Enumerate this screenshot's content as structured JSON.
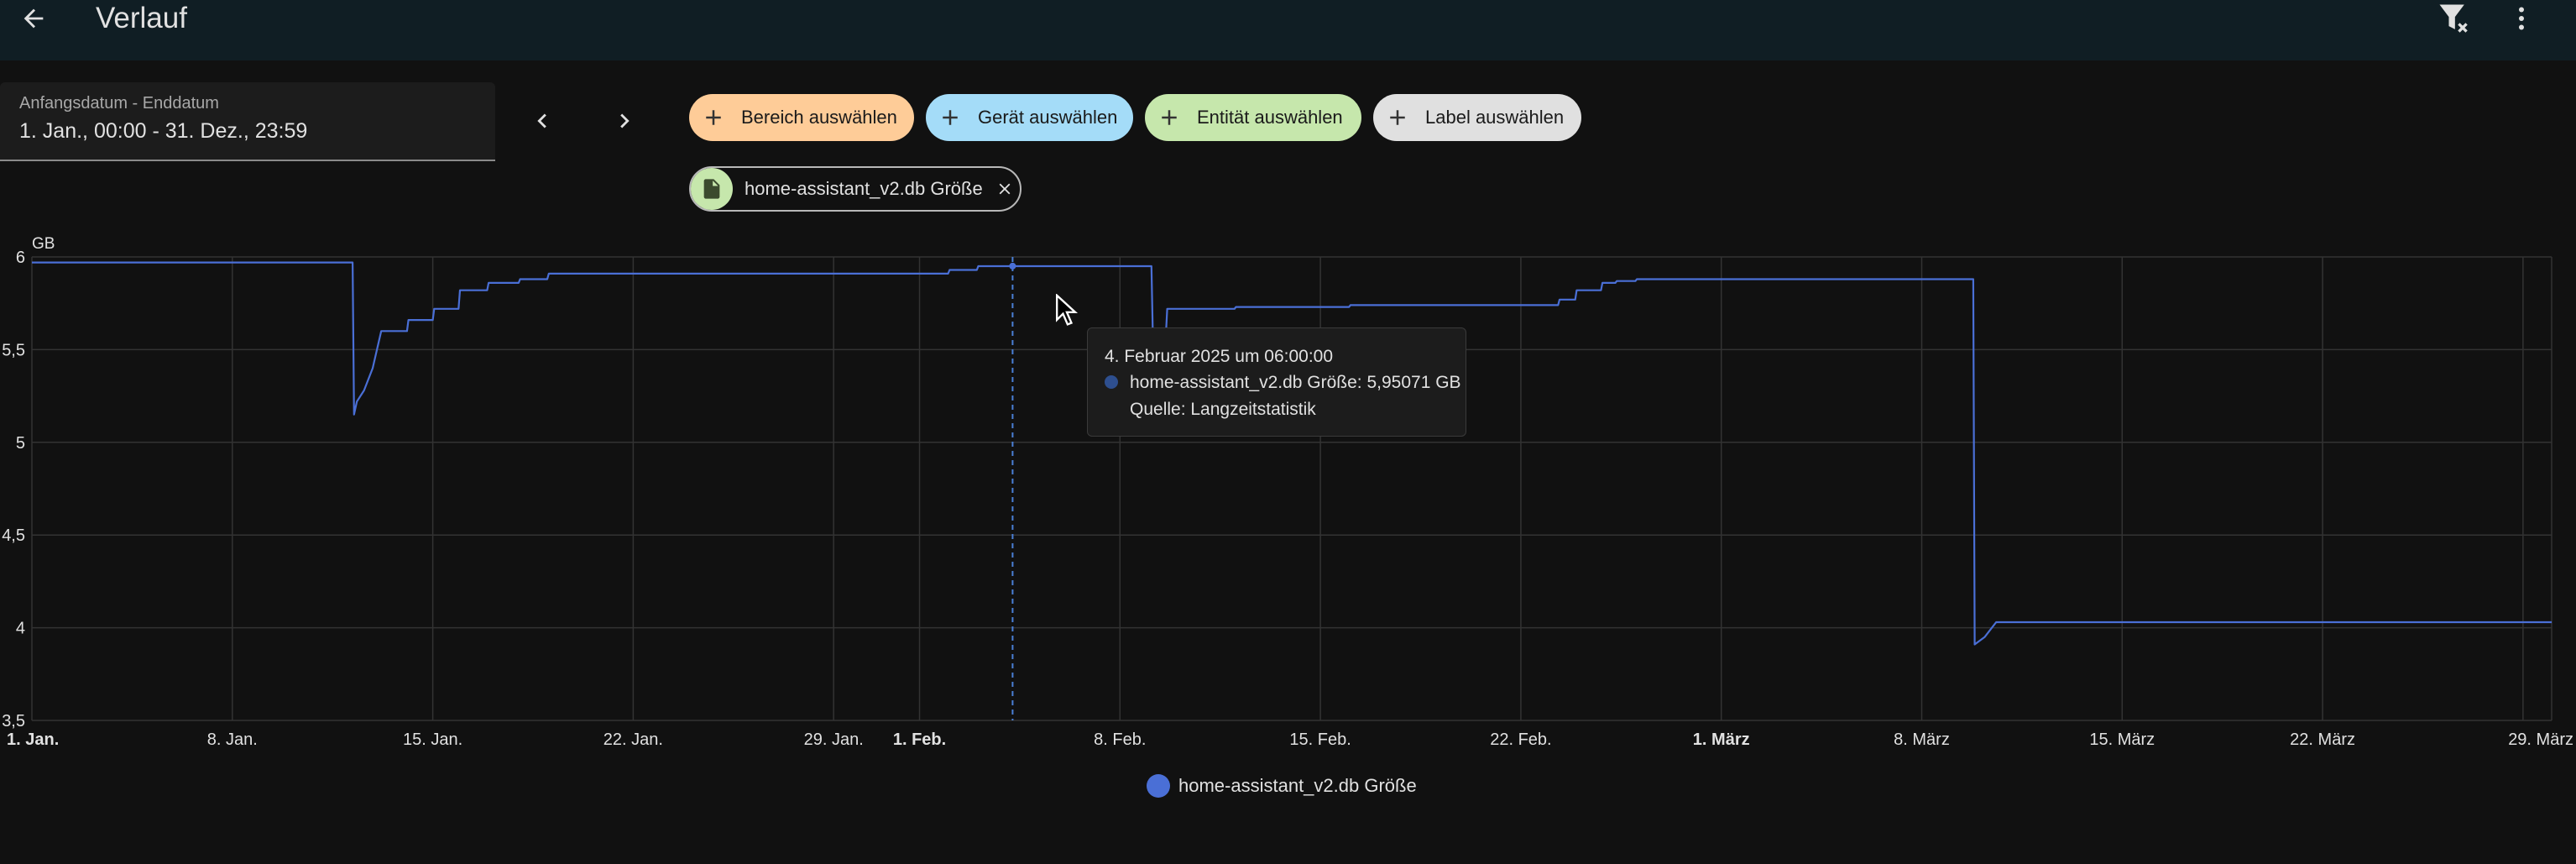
{
  "header": {
    "title": "Verlauf"
  },
  "date_range": {
    "label": "Anfangsdatum - Enddatum",
    "value": "1. Jan., 00:00 - 31. Dez., 23:59"
  },
  "target_chips": [
    {
      "label": "Bereich auswählen",
      "color": "#fecc98"
    },
    {
      "label": "Gerät auswählen",
      "color": "#a4dcf8"
    },
    {
      "label": "Entität auswählen",
      "color": "#c6e7ac"
    },
    {
      "label": "Label auswählen",
      "color": "#e0e0e0"
    }
  ],
  "selected_entity": {
    "label": "home-assistant_v2.db Größe",
    "icon": "file-icon"
  },
  "tooltip": {
    "title": "4. Februar 2025 um 06:00:00",
    "series": "home-assistant_v2.db Größe: 5,95071 GB",
    "source": "Quelle: Langzeitstatistik"
  },
  "chart_data": {
    "type": "line",
    "ylabel": "GB",
    "ylim": [
      3.5,
      6
    ],
    "yticks": [
      "6",
      "5,5",
      "5",
      "4,5",
      "4",
      "3,5"
    ],
    "xticks": [
      {
        "label": "1. Jan.",
        "day": 0,
        "bold": true
      },
      {
        "label": "8. Jan.",
        "day": 7
      },
      {
        "label": "15. Jan.",
        "day": 14
      },
      {
        "label": "22. Jan.",
        "day": 21
      },
      {
        "label": "29. Jan.",
        "day": 28
      },
      {
        "label": "1. Feb.",
        "day": 31,
        "bold": true
      },
      {
        "label": "8. Feb.",
        "day": 38
      },
      {
        "label": "15. Feb.",
        "day": 45
      },
      {
        "label": "22. Feb.",
        "day": 52
      },
      {
        "label": "1. März",
        "day": 59,
        "bold": true
      },
      {
        "label": "8. März",
        "day": 66
      },
      {
        "label": "15. März",
        "day": 73
      },
      {
        "label": "22. März",
        "day": 80
      },
      {
        "label": "29. März",
        "day": 87
      }
    ],
    "xrange_days": [
      0,
      88
    ],
    "grid": true,
    "legend": "bottom-center",
    "series": [
      {
        "name": "home-assistant_v2.db Größe",
        "color": "#4a6fd6",
        "points": [
          [
            0,
            5.97
          ],
          [
            11.2,
            5.97
          ],
          [
            11.25,
            5.15
          ],
          [
            11.35,
            5.22
          ],
          [
            11.6,
            5.28
          ],
          [
            11.9,
            5.4
          ],
          [
            12.2,
            5.6
          ],
          [
            13.1,
            5.6
          ],
          [
            13.15,
            5.66
          ],
          [
            14.0,
            5.66
          ],
          [
            14.05,
            5.72
          ],
          [
            14.9,
            5.72
          ],
          [
            14.95,
            5.82
          ],
          [
            15.9,
            5.82
          ],
          [
            15.95,
            5.86
          ],
          [
            17.0,
            5.86
          ],
          [
            17.05,
            5.88
          ],
          [
            18.0,
            5.88
          ],
          [
            18.05,
            5.91
          ],
          [
            26.0,
            5.91
          ],
          [
            32.0,
            5.91
          ],
          [
            32.05,
            5.93
          ],
          [
            33.0,
            5.93
          ],
          [
            33.05,
            5.95
          ],
          [
            39.1,
            5.95
          ],
          [
            39.15,
            5.57
          ],
          [
            39.6,
            5.57
          ],
          [
            39.65,
            5.72
          ],
          [
            42.0,
            5.72
          ],
          [
            42.05,
            5.73
          ],
          [
            46.0,
            5.73
          ],
          [
            46.05,
            5.74
          ],
          [
            53.3,
            5.74
          ],
          [
            53.35,
            5.77
          ],
          [
            53.9,
            5.77
          ],
          [
            53.95,
            5.82
          ],
          [
            54.8,
            5.82
          ],
          [
            54.85,
            5.86
          ],
          [
            55.3,
            5.86
          ],
          [
            55.35,
            5.87
          ],
          [
            56.0,
            5.87
          ],
          [
            56.05,
            5.88
          ],
          [
            67.8,
            5.88
          ],
          [
            67.85,
            3.91
          ],
          [
            68.2,
            3.95
          ],
          [
            68.6,
            4.03
          ],
          [
            88,
            4.03
          ]
        ]
      }
    ],
    "hover": {
      "day": 34.25,
      "value": 5.95071
    }
  }
}
